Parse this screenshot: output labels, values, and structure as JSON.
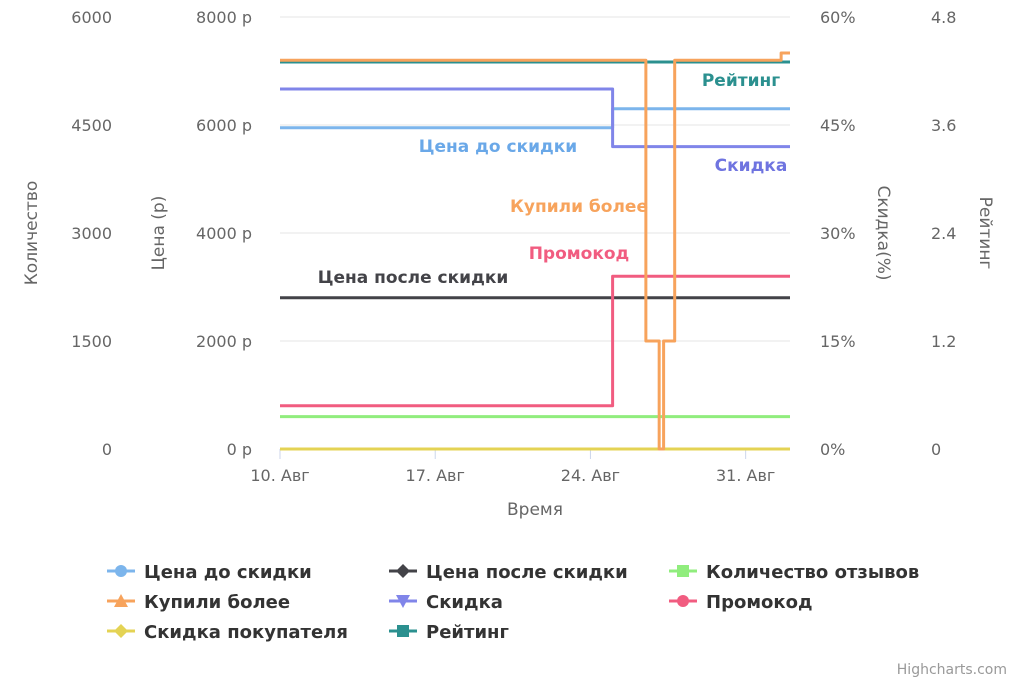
{
  "chart_data": {
    "type": "line",
    "step": true,
    "xlabel": "Время",
    "x_ticks": [
      "10. Авг",
      "17. Авг",
      "24. Авг",
      "31. Авг"
    ],
    "x_tick_days": [
      10,
      17,
      24,
      31
    ],
    "x_range_days": [
      10,
      33
    ],
    "y_axes": [
      {
        "id": "qty",
        "title": "Количество",
        "ticks": [
          "6000",
          "4500",
          "3000",
          "1500",
          "0"
        ],
        "min": 0,
        "max": 6000
      },
      {
        "id": "price",
        "title": "Цена (р)",
        "ticks": [
          "8000 р",
          "6000 р",
          "4000 р",
          "2000 р",
          "0 р"
        ],
        "min": 0,
        "max": 8000
      },
      {
        "id": "pct",
        "title": "Скидка(%)",
        "ticks": [
          "60%",
          "45%",
          "30%",
          "15%",
          "0%"
        ],
        "min": 0,
        "max": 60
      },
      {
        "id": "rating",
        "title": "Рейтинг",
        "ticks": [
          "4.8",
          "3.6",
          "2.4",
          "1.2",
          "0"
        ],
        "min": 0,
        "max": 4.8
      }
    ],
    "grid": true,
    "legend_position": "bottom",
    "series": [
      {
        "name": "Цена до скидки",
        "color": "#7cb5ec",
        "axis": "price",
        "marker": "circle",
        "points": [
          [
            10,
            5950
          ],
          [
            25,
            6300
          ],
          [
            33,
            6300
          ]
        ],
        "label": "Цена до скидки"
      },
      {
        "name": "Цена после скидки",
        "color": "#434348",
        "axis": "price",
        "marker": "diamond",
        "points": [
          [
            10,
            2800
          ],
          [
            33,
            2800
          ]
        ],
        "label": "Цена после скидки"
      },
      {
        "name": "Количество отзывов",
        "color": "#90ed7d",
        "axis": "qty",
        "marker": "square",
        "points": [
          [
            10,
            450
          ],
          [
            33,
            450
          ]
        ]
      },
      {
        "name": "Купили более",
        "color": "#f7a35c",
        "axis": "qty",
        "marker": "triangle",
        "points": [
          [
            10,
            5400
          ],
          [
            26.5,
            1500
          ],
          [
            27.1,
            0
          ],
          [
            27.3,
            1500
          ],
          [
            27.8,
            5400
          ],
          [
            32.6,
            5500
          ],
          [
            33,
            5500
          ]
        ],
        "label": "Купили более"
      },
      {
        "name": "Скидка",
        "color": "#8085e9",
        "axis": "pct",
        "marker": "triangle-down",
        "points": [
          [
            10,
            50
          ],
          [
            25,
            42
          ],
          [
            33,
            42
          ]
        ],
        "label": "Скидка"
      },
      {
        "name": "Промокод",
        "color": "#f15c80",
        "axis": "pct",
        "marker": "circle",
        "points": [
          [
            10,
            6
          ],
          [
            25,
            24
          ],
          [
            33,
            24
          ]
        ],
        "label": "Промокод"
      },
      {
        "name": "Скидка покупателя",
        "color": "#e4d354",
        "axis": "pct",
        "marker": "diamond",
        "points": [
          [
            10,
            0
          ],
          [
            33,
            0
          ]
        ]
      },
      {
        "name": "Рейтинг",
        "color": "#2b908f",
        "axis": "rating",
        "marker": "square",
        "points": [
          [
            10,
            4.3
          ],
          [
            33,
            4.3
          ]
        ],
        "label": "Рейтинг"
      }
    ],
    "credits": "Highcharts.com"
  }
}
